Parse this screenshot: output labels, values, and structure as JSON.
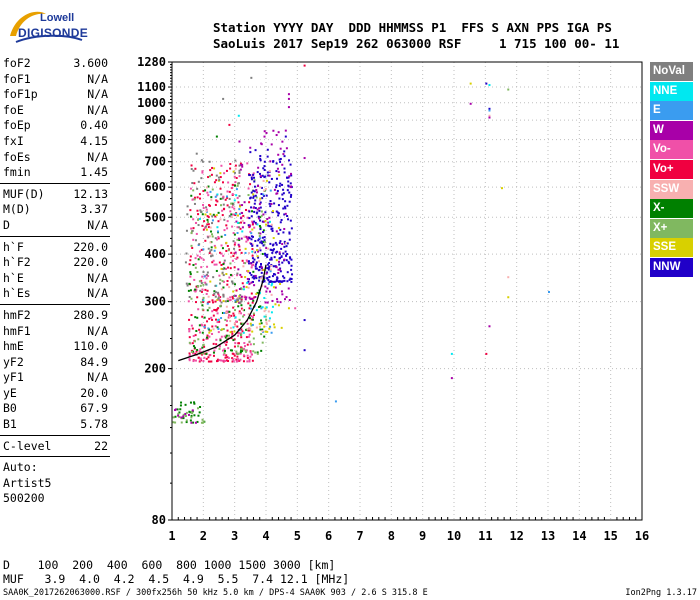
{
  "logo": {
    "line1": "Lowell",
    "line2": "DIGISONDE"
  },
  "header": {
    "row1": "Station YYYY DAY  DDD HHMMSS P1  FFS S AXN PPS IGA PS",
    "row2": "SaoLuis 2017 Sep19 262 063000 RSF     1 715 100 00- 11"
  },
  "params": [
    [
      {
        "name": "foF2",
        "value": "3.600"
      },
      {
        "name": "foF1",
        "value": "N/A"
      },
      {
        "name": "foF1p",
        "value": "N/A"
      },
      {
        "name": "foE",
        "value": "N/A"
      },
      {
        "name": "foEp",
        "value": "0.40"
      },
      {
        "name": "fxI",
        "value": "4.15"
      },
      {
        "name": "foEs",
        "value": "N/A"
      },
      {
        "name": "fmin",
        "value": "1.45"
      }
    ],
    [
      {
        "name": "MUF(D)",
        "value": "12.13"
      },
      {
        "name": "M(D)",
        "value": "3.37"
      },
      {
        "name": "D",
        "value": "N/A"
      }
    ],
    [
      {
        "name": "h`F",
        "value": "220.0"
      },
      {
        "name": "h`F2",
        "value": "220.0"
      },
      {
        "name": "h`E",
        "value": "N/A"
      },
      {
        "name": "h`Es",
        "value": "N/A"
      }
    ],
    [
      {
        "name": "hmF2",
        "value": "280.9"
      },
      {
        "name": "hmF1",
        "value": "N/A"
      },
      {
        "name": "hmE",
        "value": "110.0"
      },
      {
        "name": "yF2",
        "value": "84.9"
      },
      {
        "name": "yF1",
        "value": "N/A"
      },
      {
        "name": "yE",
        "value": "20.0"
      },
      {
        "name": "B0",
        "value": "67.9"
      },
      {
        "name": "B1",
        "value": "5.78"
      }
    ],
    [
      {
        "name": "C-level",
        "value": "22"
      }
    ]
  ],
  "auto": [
    "Auto:",
    "Artist5",
    "500200"
  ],
  "legend": [
    {
      "label": "NoVal",
      "color": "#7f7f7f"
    },
    {
      "label": "NNE",
      "color": "#00e8f0"
    },
    {
      "label": "E",
      "color": "#3a9cf0"
    },
    {
      "label": "W",
      "color": "#a800a8"
    },
    {
      "label": "Vo-",
      "color": "#f050a8"
    },
    {
      "label": "Vo+",
      "color": "#f00040"
    },
    {
      "label": "SSW",
      "color": "#f8b0b0"
    },
    {
      "label": "X-",
      "color": "#008000"
    },
    {
      "label": "X+",
      "color": "#80b860"
    },
    {
      "label": "SSE",
      "color": "#d8d000"
    },
    {
      "label": "NNW",
      "color": "#2000c8"
    }
  ],
  "bottom": {
    "row1": "D    100  200  400  600  800 1000 1500 3000 [km]",
    "row2": "MUF   3.9  4.0  4.2  4.5  4.9  5.5  7.4 12.1 [MHz]"
  },
  "footer": {
    "left": "SAA0K_2017262063000.RSF / 300fx256h 50 kHz 5.0 km / DPS-4 SAA0K 903 / 2.6 S 315.8 E",
    "right": "Ion2Png 1.3.17"
  },
  "chart_data": {
    "type": "scatter",
    "xlabel": "",
    "ylabel": "",
    "xlim": [
      1,
      16
    ],
    "ylim": [
      80,
      1280
    ],
    "y_scale": "log",
    "x_ticks": [
      "1",
      "2",
      "3",
      "4",
      "5",
      "6",
      "7",
      "8",
      "9",
      "10",
      "11",
      "12",
      "13",
      "14",
      "15",
      "16"
    ],
    "y_ticks": [
      "80",
      "200",
      "300",
      "400",
      "500",
      "600",
      "700",
      "800",
      "900",
      "1000",
      "1100",
      "1280"
    ],
    "trace_curve": [
      [
        1.2,
        210
      ],
      [
        1.8,
        218
      ],
      [
        2.4,
        228
      ],
      [
        3.0,
        245
      ],
      [
        3.4,
        268
      ],
      [
        3.7,
        300
      ],
      [
        3.9,
        340
      ],
      [
        4.0,
        375
      ]
    ],
    "clusters": [
      {
        "series": "Vo+",
        "color": "#f00040",
        "fmin": 1.5,
        "fmax": 3.6,
        "hmin": 210,
        "hmax": 700,
        "n": 260
      },
      {
        "series": "Vo-",
        "color": "#f050a8",
        "fmin": 1.5,
        "fmax": 3.6,
        "hmin": 210,
        "hmax": 700,
        "n": 220
      },
      {
        "series": "X-",
        "color": "#008000",
        "fmin": 1.5,
        "fmax": 4.0,
        "hmin": 220,
        "hmax": 650,
        "n": 110
      },
      {
        "series": "X+",
        "color": "#80b860",
        "fmin": 1.5,
        "fmax": 4.0,
        "hmin": 220,
        "hmax": 650,
        "n": 90
      },
      {
        "series": "NNW",
        "color": "#2000c8",
        "fmin": 3.4,
        "fmax": 4.8,
        "hmin": 340,
        "hmax": 760,
        "n": 300
      },
      {
        "series": "W",
        "color": "#a800a8",
        "fmin": 3.0,
        "fmax": 4.8,
        "hmin": 300,
        "hmax": 850,
        "n": 120
      },
      {
        "series": "SSE",
        "color": "#d8d000",
        "fmin": 2.0,
        "fmax": 4.5,
        "hmin": 250,
        "hmax": 700,
        "n": 60
      },
      {
        "series": "E",
        "color": "#3a9cf0",
        "fmin": 1.8,
        "fmax": 4.2,
        "hmin": 250,
        "hmax": 600,
        "n": 40
      },
      {
        "series": "NNE",
        "color": "#00e8f0",
        "fmin": 1.8,
        "fmax": 4.2,
        "hmin": 250,
        "hmax": 600,
        "n": 30
      },
      {
        "series": "SSW",
        "color": "#f8b0b0",
        "fmin": 2.0,
        "fmax": 4.2,
        "hmin": 250,
        "hmax": 700,
        "n": 60
      },
      {
        "series": "NoVal",
        "color": "#7f7f7f",
        "fmin": 1.4,
        "fmax": 3.2,
        "hmin": 300,
        "hmax": 750,
        "n": 90
      },
      {
        "series": "X-",
        "color": "#008000",
        "fmin": 1.0,
        "fmax": 2.0,
        "hmin": 145,
        "hmax": 165,
        "n": 25
      },
      {
        "series": "X+",
        "color": "#80b860",
        "fmin": 1.0,
        "fmax": 2.0,
        "hmin": 145,
        "hmax": 165,
        "n": 20
      },
      {
        "series": "W",
        "color": "#a800a8",
        "fmin": 1.0,
        "fmax": 2.0,
        "hmin": 145,
        "hmax": 165,
        "n": 10
      }
    ],
    "points": [
      {
        "x": 4.6,
        "y": 850,
        "series": "W"
      },
      {
        "x": 4.6,
        "y": 820,
        "series": "NNW"
      },
      {
        "x": 4.7,
        "y": 1060,
        "series": "W"
      },
      {
        "x": 4.7,
        "y": 1030,
        "series": "W"
      },
      {
        "x": 4.7,
        "y": 980,
        "series": "W"
      },
      {
        "x": 5.2,
        "y": 1260,
        "series": "Vo+"
      },
      {
        "x": 5.2,
        "y": 720,
        "series": "W"
      },
      {
        "x": 5.2,
        "y": 270,
        "series": "NNW"
      },
      {
        "x": 5.2,
        "y": 225,
        "series": "NNW"
      },
      {
        "x": 4.7,
        "y": 290,
        "series": "SSE"
      },
      {
        "x": 6.2,
        "y": 165,
        "series": "E"
      },
      {
        "x": 10.5,
        "y": 1130,
        "series": "SSE"
      },
      {
        "x": 10.5,
        "y": 1000,
        "series": "W"
      },
      {
        "x": 11.0,
        "y": 1130,
        "series": "NNW"
      },
      {
        "x": 11.1,
        "y": 1120,
        "series": "NNE"
      },
      {
        "x": 11.1,
        "y": 970,
        "series": "NNW"
      },
      {
        "x": 11.1,
        "y": 960,
        "series": "E"
      },
      {
        "x": 11.1,
        "y": 930,
        "series": "SSW"
      },
      {
        "x": 11.1,
        "y": 920,
        "series": "W"
      },
      {
        "x": 11.1,
        "y": 260,
        "series": "W"
      },
      {
        "x": 11.0,
        "y": 220,
        "series": "Vo+"
      },
      {
        "x": 11.7,
        "y": 1090,
        "series": "X+"
      },
      {
        "x": 11.5,
        "y": 600,
        "series": "SSE"
      },
      {
        "x": 11.7,
        "y": 350,
        "series": "SSW"
      },
      {
        "x": 11.7,
        "y": 310,
        "series": "SSE"
      },
      {
        "x": 9.9,
        "y": 220,
        "series": "NNE"
      },
      {
        "x": 9.9,
        "y": 190,
        "series": "W"
      },
      {
        "x": 13.0,
        "y": 320,
        "series": "E"
      },
      {
        "x": 1.9,
        "y": 520,
        "series": "NoVal"
      },
      {
        "x": 2.6,
        "y": 1030,
        "series": "NoVal"
      },
      {
        "x": 3.1,
        "y": 930,
        "series": "NNE"
      },
      {
        "x": 2.8,
        "y": 880,
        "series": "Vo+"
      },
      {
        "x": 2.4,
        "y": 820,
        "series": "X-"
      },
      {
        "x": 3.5,
        "y": 1170,
        "series": "NoVal"
      },
      {
        "x": 4.6,
        "y": 430,
        "series": "SSW"
      },
      {
        "x": 4.9,
        "y": 290,
        "series": "Vo-"
      }
    ]
  }
}
